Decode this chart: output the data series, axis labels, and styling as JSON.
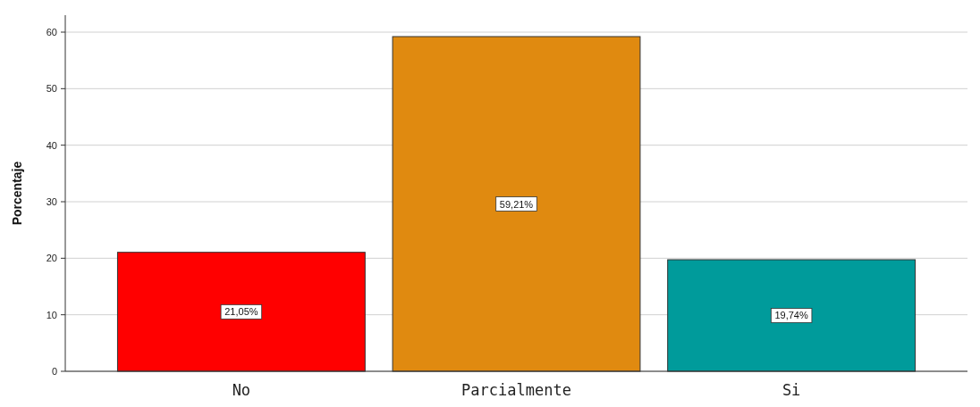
{
  "chart_data": {
    "type": "bar",
    "ylabel": "Porcentaje",
    "categories": [
      "No",
      "Parcialmente",
      "Si"
    ],
    "values": [
      21.05,
      59.21,
      19.74
    ],
    "colors": [
      "#ff0000",
      "#e08a10",
      "#009b9b"
    ],
    "value_labels": [
      "21,05%",
      "59,21%",
      "19,74%"
    ],
    "ylim": [
      0,
      63
    ],
    "yticks": [
      0,
      10,
      20,
      30,
      40,
      50,
      60
    ],
    "grid": "y"
  }
}
